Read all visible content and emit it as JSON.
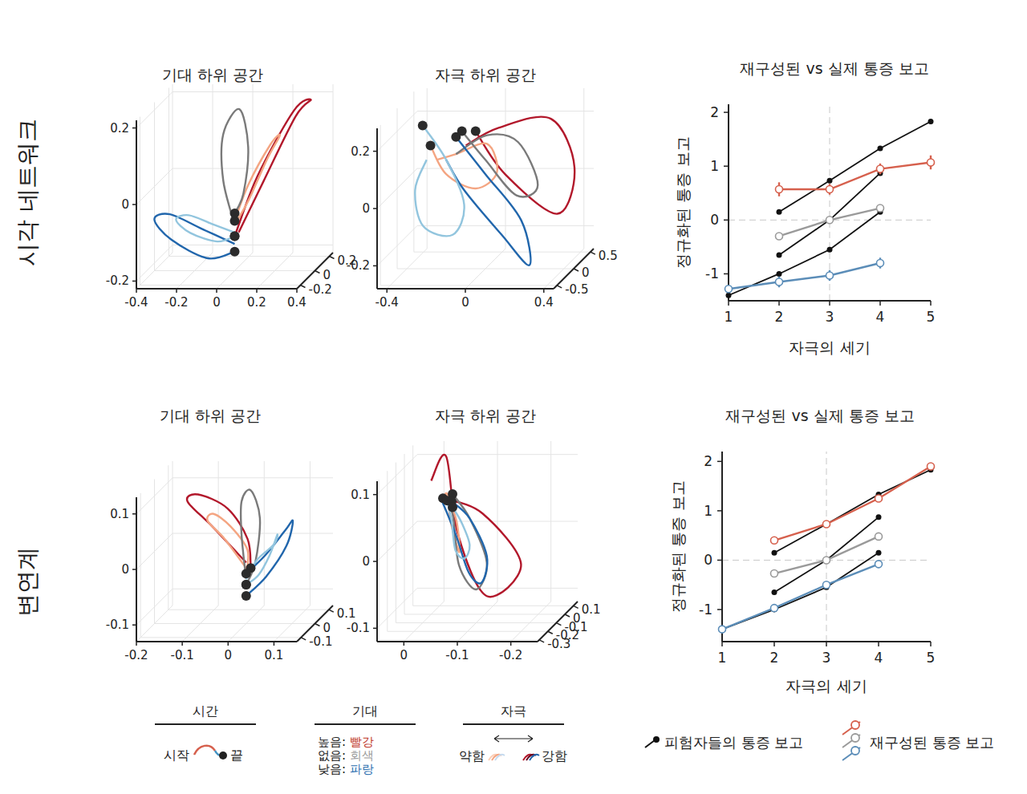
{
  "chart_data": [
    {
      "type": "trajectory3d",
      "title": "기대 하위 공간",
      "xlim": [
        -0.4,
        0.4
      ],
      "xticks": [
        -0.4,
        -0.2,
        0,
        0.2,
        0.4
      ],
      "ylim": [
        -0.25,
        0.25
      ],
      "yticks": [
        -0.2,
        0,
        0.2
      ],
      "zlim": [
        -0.22,
        0.22
      ],
      "zticks": [
        -0.2,
        0,
        0.2
      ],
      "grid": true,
      "series": [
        {
          "color": "#b2182b",
          "marker": "end-dot",
          "x": [
            0.02,
            0.12,
            0.26,
            0.33,
            0.26,
            0.1,
            0.0
          ],
          "y": [
            0,
            0.06,
            0.12,
            0.14,
            0.1,
            0.04,
            0
          ],
          "z": [
            -0.12,
            0.0,
            0.16,
            0.2,
            0.18,
            0.02,
            -0.13
          ]
        },
        {
          "color": "#f4a582",
          "marker": "end-dot",
          "x": [
            0.0,
            0.06,
            0.14,
            0.2,
            0.16,
            0.06,
            0.0
          ],
          "y": [
            0,
            0.03,
            0.06,
            0.07,
            0.05,
            0.02,
            0
          ],
          "z": [
            -0.1,
            -0.04,
            0.06,
            0.12,
            0.1,
            0.0,
            -0.09
          ]
        },
        {
          "color": "#7a7a7a",
          "marker": "end-dot",
          "x": [
            0.0,
            -0.05,
            -0.05,
            0.02,
            0.06,
            0.04,
            0.0
          ],
          "y": [
            0,
            -0.02,
            -0.02,
            0.01,
            0.02,
            0.01,
            0
          ],
          "z": [
            -0.1,
            0.02,
            0.14,
            0.2,
            0.1,
            -0.02,
            -0.07
          ]
        },
        {
          "color": "#2166ac",
          "marker": "end-dot",
          "x": [
            0.0,
            -0.14,
            -0.28,
            -0.35,
            -0.28,
            -0.12,
            0.0
          ],
          "y": [
            0,
            -0.06,
            -0.12,
            -0.14,
            -0.1,
            -0.04,
            0
          ],
          "z": [
            -0.15,
            -0.1,
            -0.05,
            -0.06,
            -0.12,
            -0.18,
            -0.17
          ]
        },
        {
          "color": "#92c5de",
          "marker": "end-dot",
          "x": [
            0.0,
            -0.1,
            -0.2,
            -0.26,
            -0.2,
            -0.08,
            0.0
          ],
          "y": [
            0,
            -0.04,
            -0.08,
            -0.09,
            -0.06,
            -0.02,
            0
          ],
          "z": [
            -0.12,
            -0.09,
            -0.06,
            -0.07,
            -0.11,
            -0.14,
            -0.13
          ]
        }
      ]
    },
    {
      "type": "trajectory3d",
      "title": "자극 하위 공간",
      "xlim": [
        -0.45,
        0.45
      ],
      "xticks": [
        -0.4,
        0,
        0.4
      ],
      "ylim": [
        -0.6,
        0.6
      ],
      "yticks": [
        -0.5,
        0,
        0.5
      ],
      "zlim": [
        -0.28,
        0.28
      ],
      "zticks": [
        -0.2,
        0,
        0.2
      ],
      "grid": true,
      "series": [
        {
          "color": "#b2182b",
          "marker": "end-dot",
          "x": [
            -0.1,
            0.05,
            0.3,
            0.42,
            0.35,
            0.1,
            -0.05
          ],
          "y": [
            0,
            0.1,
            0.2,
            0.2,
            0.1,
            0,
            0
          ],
          "z": [
            0.15,
            0.2,
            0.22,
            0.05,
            -0.1,
            0.05,
            0.2
          ]
        },
        {
          "color": "#f4a582",
          "marker": "end-dot",
          "x": [
            -0.25,
            -0.15,
            0.0,
            0.05,
            -0.05,
            -0.2,
            -0.28
          ],
          "y": [
            0,
            0,
            0.05,
            0.05,
            0,
            0,
            0
          ],
          "z": [
            0.1,
            0.12,
            0.15,
            0.05,
            0.0,
            0.05,
            0.15
          ]
        },
        {
          "color": "#7a7a7a",
          "marker": "end-dot",
          "x": [
            -0.15,
            0.0,
            0.15,
            0.25,
            0.15,
            0.0,
            -0.12
          ],
          "y": [
            0,
            0.05,
            0.1,
            0.1,
            0.05,
            0,
            0
          ],
          "z": [
            0.12,
            0.18,
            0.15,
            0.0,
            -0.03,
            0.1,
            0.2
          ]
        },
        {
          "color": "#2166ac",
          "marker": "end-dot",
          "x": [
            -0.2,
            -0.1,
            0.1,
            0.25,
            0.2,
            0.0,
            -0.15
          ],
          "y": [
            0,
            -0.05,
            -0.1,
            -0.15,
            -0.1,
            0,
            0
          ],
          "z": [
            0.1,
            0.0,
            -0.15,
            -0.25,
            -0.1,
            0.05,
            0.18
          ]
        },
        {
          "color": "#92c5de",
          "marker": "end-dot",
          "x": [
            -0.3,
            -0.35,
            -0.3,
            -0.15,
            -0.1,
            -0.2,
            -0.32
          ],
          "y": [
            0,
            -0.05,
            -0.1,
            -0.1,
            -0.05,
            0,
            0
          ],
          "z": [
            0.1,
            0.0,
            -0.12,
            -0.15,
            -0.05,
            0.1,
            0.22
          ]
        }
      ]
    },
    {
      "type": "line",
      "title": "재구성된 vs 실제 통증 보고",
      "x_label": "자극의 세기",
      "y_label": "정규화된 통증 보고",
      "xlim": [
        1,
        5
      ],
      "xticks": [
        1,
        2,
        3,
        4,
        5
      ],
      "ylim": [
        -1.5,
        2.15
      ],
      "yticks": [
        -1,
        0,
        1,
        2
      ],
      "reference_x": 3,
      "reference_y": 0,
      "series": [
        {
          "color": "#111111",
          "marker": "dot",
          "x": [
            1,
            2,
            3,
            4
          ],
          "values": [
            -1.4,
            -1.0,
            -0.55,
            0.15
          ]
        },
        {
          "color": "#111111",
          "marker": "dot",
          "x": [
            2,
            3,
            4
          ],
          "values": [
            -0.65,
            0.0,
            0.87
          ]
        },
        {
          "color": "#111111",
          "marker": "dot",
          "x": [
            2,
            3,
            4,
            5
          ],
          "values": [
            0.15,
            0.73,
            1.33,
            1.83
          ]
        },
        {
          "color": "#d6604d",
          "marker": "open-circle",
          "x": [
            2,
            3,
            4,
            5
          ],
          "values": [
            0.57,
            0.57,
            0.95,
            1.07
          ],
          "errors": [
            0.13,
            0.1,
            0.1,
            0.13
          ]
        },
        {
          "color": "#9a9a9a",
          "marker": "open-circle",
          "x": [
            2,
            3,
            4
          ],
          "values": [
            -0.3,
            0.0,
            0.22
          ],
          "errors": [
            0.03,
            0.03,
            0.03
          ]
        },
        {
          "color": "#5b8db8",
          "marker": "open-circle",
          "x": [
            1,
            2,
            3,
            4
          ],
          "values": [
            -1.28,
            -1.15,
            -1.03,
            -0.8
          ],
          "errors": [
            0.04,
            0.1,
            0.1,
            0.1
          ]
        }
      ]
    },
    {
      "type": "trajectory3d",
      "title": "기대 하위 공간",
      "xlim": [
        -0.2,
        0.15
      ],
      "xticks": [
        -0.2,
        -0.1,
        0,
        0.1
      ],
      "ylim": [
        -0.13,
        0.13
      ],
      "yticks": [
        -0.1,
        0,
        0.1
      ],
      "zlim": [
        -0.13,
        0.13
      ],
      "zticks": [
        -0.1,
        0,
        0.1
      ],
      "grid": true,
      "series": [
        {
          "color": "#b2182b",
          "marker": "end-dot",
          "x": [
            0.0,
            -0.08,
            -0.14,
            -0.12,
            -0.05,
            0.0,
            0.01
          ],
          "y": [
            0,
            0.02,
            0.04,
            0.05,
            0.03,
            0.01,
            0
          ],
          "z": [
            -0.02,
            0.04,
            0.08,
            0.09,
            0.07,
            0.02,
            -0.03
          ]
        },
        {
          "color": "#f4a582",
          "marker": "end-dot",
          "x": [
            0.0,
            -0.05,
            -0.09,
            -0.08,
            -0.04,
            0.0,
            0.0
          ],
          "y": [
            0,
            0.01,
            0.02,
            0.03,
            0.02,
            0.01,
            0
          ],
          "z": [
            -0.03,
            0.02,
            0.05,
            0.06,
            0.04,
            0.0,
            -0.04
          ]
        },
        {
          "color": "#7a7a7a",
          "marker": "end-dot",
          "x": [
            0.0,
            -0.01,
            -0.01,
            0.01,
            0.03,
            0.02,
            0.0
          ],
          "y": [
            0,
            0,
            0,
            0,
            0,
            0,
            0
          ],
          "z": [
            -0.05,
            0.03,
            0.09,
            0.11,
            0.06,
            -0.02,
            -0.06
          ]
        },
        {
          "color": "#2166ac",
          "marker": "end-dot",
          "x": [
            0.0,
            0.05,
            0.1,
            0.12,
            0.1,
            0.05,
            0.0
          ],
          "y": [
            0,
            -0.03,
            -0.05,
            -0.06,
            -0.04,
            -0.02,
            0
          ],
          "z": [
            -0.04,
            0.0,
            0.05,
            0.07,
            0.02,
            -0.04,
            -0.08
          ]
        },
        {
          "color": "#92c5de",
          "marker": "end-dot",
          "x": [
            0.0,
            0.03,
            0.07,
            0.08,
            0.06,
            0.03,
            0.0
          ],
          "y": [
            0,
            -0.02,
            -0.03,
            -0.04,
            -0.03,
            -0.01,
            0
          ],
          "z": [
            -0.05,
            -0.01,
            0.02,
            0.04,
            0.0,
            -0.04,
            -0.06
          ]
        }
      ]
    },
    {
      "type": "trajectory3d",
      "title": "자극 하위 공간",
      "xlim": [
        0.05,
        -0.25
      ],
      "xticks": [
        0,
        -0.1,
        -0.2
      ],
      "ylim": [
        -0.32,
        0.15
      ],
      "yticks": [
        -0.3,
        -0.2,
        -0.1,
        0,
        0.1
      ],
      "zlim": [
        -0.12,
        0.12
      ],
      "zticks": [
        -0.1,
        0,
        0.1
      ],
      "grid": true,
      "series": [
        {
          "color": "#b2182b",
          "marker": "end-dot",
          "x": [
            0.0,
            -0.02,
            -0.05,
            -0.12,
            -0.2,
            -0.12,
            -0.03
          ],
          "y": [
            0,
            0.05,
            0.0,
            -0.1,
            -0.2,
            -0.15,
            -0.05
          ],
          "z": [
            0.08,
            0.11,
            0.0,
            -0.08,
            -0.02,
            0.05,
            0.06
          ]
        },
        {
          "color": "#f4a582",
          "marker": "end-dot",
          "x": [
            -0.02,
            -0.03,
            -0.04,
            -0.06,
            -0.06,
            -0.05,
            -0.03
          ],
          "y": [
            0,
            0,
            -0.02,
            -0.05,
            -0.05,
            -0.03,
            0
          ],
          "z": [
            0.05,
            0.06,
            0.02,
            -0.02,
            0.0,
            0.03,
            0.05
          ]
        },
        {
          "color": "#7a7a7a",
          "marker": "end-dot",
          "x": [
            -0.02,
            -0.04,
            -0.06,
            -0.1,
            -0.12,
            -0.08,
            -0.04
          ],
          "y": [
            0,
            0,
            -0.05,
            -0.1,
            -0.1,
            -0.05,
            0
          ],
          "z": [
            0.06,
            0.03,
            -0.04,
            -0.07,
            -0.03,
            0.03,
            0.06
          ]
        },
        {
          "color": "#2166ac",
          "marker": "end-dot",
          "x": [
            -0.02,
            -0.05,
            -0.08,
            -0.11,
            -0.12,
            -0.08,
            -0.04
          ],
          "y": [
            0,
            -0.02,
            -0.06,
            -0.1,
            -0.1,
            -0.05,
            -0.01
          ],
          "z": [
            0.05,
            0.0,
            -0.05,
            -0.06,
            -0.02,
            0.03,
            0.05
          ]
        },
        {
          "color": "#92c5de",
          "marker": "end-dot",
          "x": [
            -0.03,
            -0.04,
            -0.05,
            -0.07,
            -0.08,
            -0.06,
            -0.04
          ],
          "y": [
            0,
            -0.01,
            -0.03,
            -0.05,
            -0.05,
            -0.02,
            0
          ],
          "z": [
            0.05,
            0.02,
            -0.02,
            -0.03,
            -0.01,
            0.02,
            0.04
          ]
        }
      ]
    },
    {
      "type": "line",
      "title": "재구성된 vs 실제 통증 보고",
      "x_label": "자극의 세기",
      "y_label": "정규화된 통증 보고",
      "xlim": [
        1,
        5
      ],
      "xticks": [
        1,
        2,
        3,
        4,
        5
      ],
      "ylim": [
        -1.65,
        2.2
      ],
      "yticks": [
        -1,
        0,
        1,
        2
      ],
      "reference_x": 3,
      "reference_y": 0,
      "series": [
        {
          "color": "#111111",
          "marker": "dot",
          "x": [
            1,
            2,
            3,
            4
          ],
          "values": [
            -1.4,
            -1.0,
            -0.55,
            0.15
          ]
        },
        {
          "color": "#111111",
          "marker": "dot",
          "x": [
            2,
            3,
            4
          ],
          "values": [
            -0.65,
            0.0,
            0.87
          ]
        },
        {
          "color": "#111111",
          "marker": "dot",
          "x": [
            2,
            3,
            4,
            5
          ],
          "values": [
            0.15,
            0.73,
            1.33,
            1.83
          ]
        },
        {
          "color": "#d6604d",
          "marker": "open-circle",
          "x": [
            2,
            3,
            4,
            5
          ],
          "values": [
            0.4,
            0.73,
            1.25,
            1.9
          ],
          "errors": [
            0.06,
            0.03,
            0.03,
            0.03
          ]
        },
        {
          "color": "#9a9a9a",
          "marker": "open-circle",
          "x": [
            2,
            3,
            4
          ],
          "values": [
            -0.27,
            0.0,
            0.48
          ],
          "errors": [
            0.02,
            0.02,
            0.02
          ]
        },
        {
          "color": "#5b8db8",
          "marker": "open-circle",
          "x": [
            1,
            2,
            3,
            4
          ],
          "values": [
            -1.4,
            -0.97,
            -0.5,
            -0.08
          ],
          "errors": [
            0.02,
            0.02,
            0.02,
            0.03
          ]
        }
      ]
    }
  ],
  "figure": {
    "row_labels": [
      "시각 네트워크",
      "변연계"
    ],
    "legend": {
      "time": {
        "title": "시간",
        "start": "시작",
        "end": "끝"
      },
      "expectation": {
        "title": "기대",
        "items": [
          {
            "label": "높음:",
            "word": "빨강",
            "color": "#c0392b"
          },
          {
            "label": "없음:",
            "word": "회색",
            "color": "#9a9a9a"
          },
          {
            "label": "낮음:",
            "word": "파랑",
            "color": "#2c6fb0"
          }
        ]
      },
      "stimulus": {
        "title": "자극",
        "weak": "약함",
        "strong": "강함"
      },
      "reports": {
        "subjects": "피험자들의 통증 보고",
        "reconstructed": "재구성된 통증 보고"
      }
    }
  }
}
